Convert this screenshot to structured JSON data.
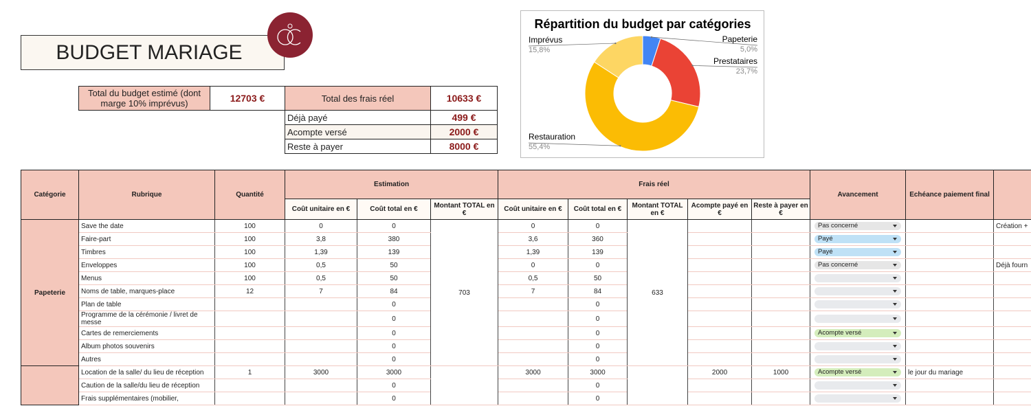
{
  "title": "BUDGET MARIAGE",
  "summary": {
    "estimated": {
      "label": "Total du budget estimé (dont marge 10% imprévus)",
      "value": "12703 €"
    },
    "real": {
      "label": "Total des frais réel",
      "value": "10633 €"
    },
    "details": [
      {
        "label": "Déjà payé",
        "value": "499 €"
      },
      {
        "label": "Acompte versé",
        "value": "2000 €"
      },
      {
        "label": "Reste à payer",
        "value": "8000 €"
      }
    ]
  },
  "chart_data": {
    "type": "pie",
    "title": "Répartition du budget par catégories",
    "categories": [
      "Papeterie",
      "Prestataires",
      "Restauration",
      "Imprévus"
    ],
    "values": [
      5.0,
      23.7,
      55.4,
      15.8
    ],
    "value_labels": [
      "5,0%",
      "23,7%",
      "55,4%",
      "15,8%"
    ],
    "colors": [
      "#4285f4",
      "#ea4335",
      "#fbbc04",
      "#fdd663"
    ],
    "donut": true
  },
  "table": {
    "columns": {
      "category": "Catégorie",
      "item": "Rubrique",
      "quantity": "Quantité",
      "estimation": "Estimation",
      "real": "Frais réel",
      "status": "Avancement",
      "due": "Echéance paiement final"
    },
    "estimation_columns": [
      "Coût unitaire en €",
      "Coût total en €",
      "Montant TOTAL en €"
    ],
    "real_columns": [
      "Coût unitaire en €",
      "Coût total en €",
      "Montant TOTAL en €",
      "Acompte payé en €",
      "Reste à payer en €"
    ],
    "groups": [
      {
        "category": "Papeterie",
        "est_total": "703",
        "real_total": "633",
        "rows": [
          {
            "item": "Save the date",
            "quantity": "100",
            "est_unit": "0",
            "est_cost": "0",
            "real_unit": "0",
            "real_cost": "0",
            "status": {
              "label": "Pas concerné",
              "color": "#e6e6e6"
            },
            "note": "Création +"
          },
          {
            "item": "Faire-part",
            "quantity": "100",
            "est_unit": "3,8",
            "est_cost": "380",
            "real_unit": "3,6",
            "real_cost": "360",
            "status": {
              "label": "Payé",
              "color": "#bfe1f6"
            }
          },
          {
            "item": "Timbres",
            "quantity": "100",
            "est_unit": "1,39",
            "est_cost": "139",
            "real_unit": "1,39",
            "real_cost": "139",
            "status": {
              "label": "Payé",
              "color": "#bfe1f6"
            }
          },
          {
            "item": "Enveloppes",
            "quantity": "100",
            "est_unit": "0,5",
            "est_cost": "50",
            "real_unit": "0",
            "real_cost": "0",
            "status": {
              "label": "Pas concerné",
              "color": "#e6e6e6"
            },
            "note": "Déjà fourn"
          },
          {
            "item": "Menus",
            "quantity": "100",
            "est_unit": "0,5",
            "est_cost": "50",
            "real_unit": "0,5",
            "real_cost": "50",
            "status": {
              "color": "#e8eaed"
            }
          },
          {
            "item": "Noms de table, marques-place",
            "quantity": "12",
            "est_unit": "7",
            "est_cost": "84",
            "real_unit": "7",
            "real_cost": "84",
            "status": {
              "color": "#e8eaed"
            }
          },
          {
            "item": "Plan de table",
            "est_cost": "0",
            "real_cost": "0",
            "status": {
              "color": "#e8eaed"
            }
          },
          {
            "item": "Programme de la cérémonie / livret de messe",
            "est_cost": "0",
            "real_cost": "0",
            "status": {
              "color": "#e8eaed"
            }
          },
          {
            "item": "Cartes de remerciements",
            "est_cost": "0",
            "real_cost": "0",
            "status": {
              "label": "Acompte versé",
              "color": "#d4edbc"
            }
          },
          {
            "item": "Album photos souvenirs",
            "est_cost": "0",
            "real_cost": "0",
            "status": {
              "color": "#e8eaed"
            }
          },
          {
            "item": "Autres",
            "est_cost": "0",
            "real_cost": "0",
            "status": {
              "color": "#e8eaed"
            }
          }
        ]
      },
      {
        "rows": [
          {
            "item": "Location de la salle/ du lieu de réception",
            "quantity": "1",
            "est_unit": "3000",
            "est_cost": "3000",
            "real_unit": "3000",
            "real_cost": "3000",
            "deposit": "2000",
            "remaining": "1000",
            "status": {
              "label": "Acompte versé",
              "color": "#d4edbc"
            },
            "due": "le jour du mariage"
          },
          {
            "item": "Caution de la salle/du lieu de réception",
            "est_cost": "0",
            "real_cost": "0",
            "status": {
              "color": "#e8eaed"
            }
          },
          {
            "item": "Frais supplémentaires (mobilier,",
            "est_cost": "0",
            "real_cost": "0",
            "status": {
              "color": "#e8eaed"
            }
          }
        ]
      }
    ]
  }
}
